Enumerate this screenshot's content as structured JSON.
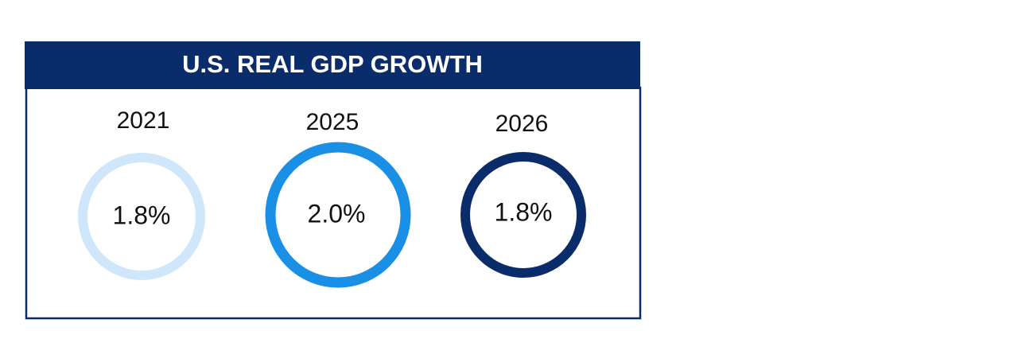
{
  "title": "U.S. REAL GDP GROWTH",
  "items": [
    {
      "year": "2021",
      "value": "1.8%"
    },
    {
      "year": "2025",
      "value": "2.0%"
    },
    {
      "year": "2026",
      "value": "1.8%"
    }
  ]
}
